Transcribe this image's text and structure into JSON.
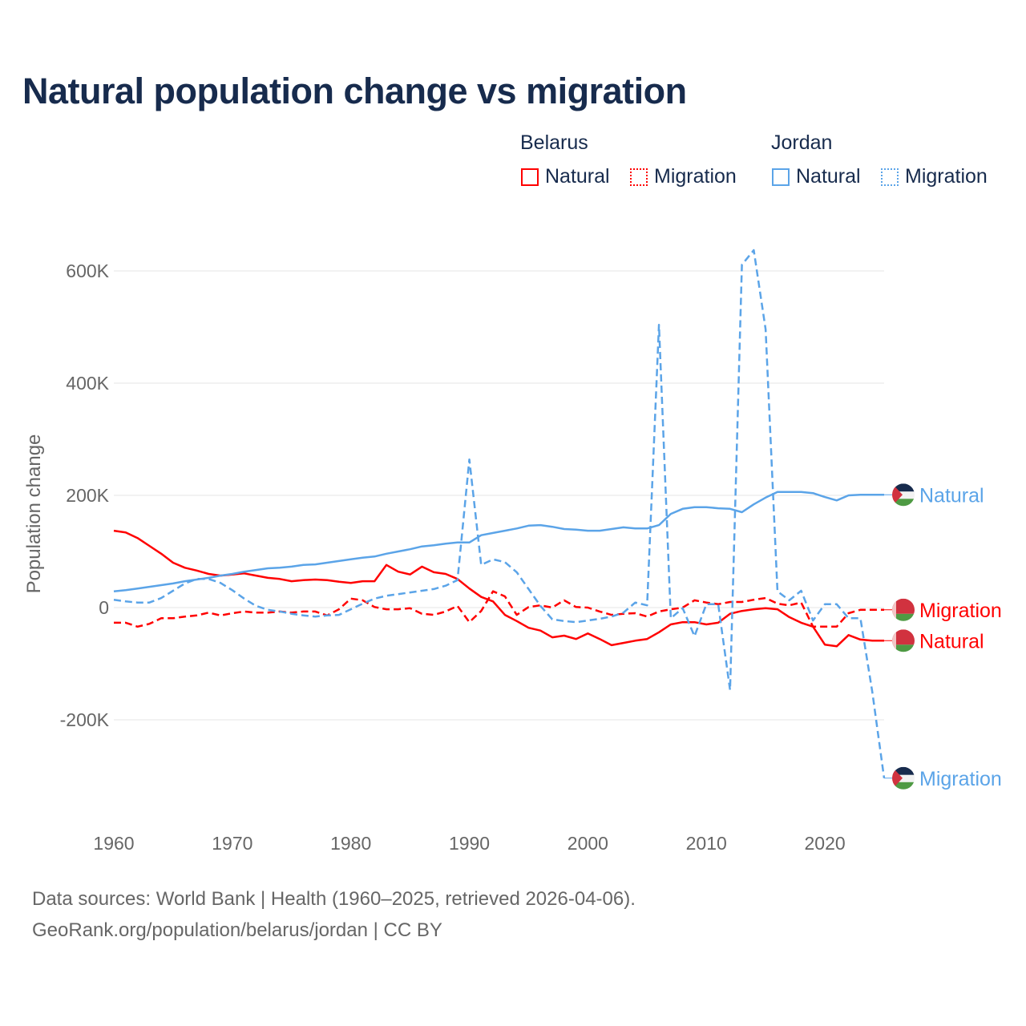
{
  "chart_data": {
    "type": "line",
    "title": "Natural population change vs migration",
    "xlabel": "",
    "ylabel": "Population change",
    "xlim": [
      1960,
      2025
    ],
    "ylim": [
      -330,
      650
    ],
    "y_ticks": [
      {
        "v": 600,
        "label": "600K"
      },
      {
        "v": 400,
        "label": "400K"
      },
      {
        "v": 200,
        "label": "200K"
      },
      {
        "v": 0,
        "label": "0"
      },
      {
        "v": -200,
        "label": "-200K"
      }
    ],
    "x_ticks": [
      {
        "v": 1960,
        "label": "1960"
      },
      {
        "v": 1970,
        "label": "1970"
      },
      {
        "v": 1980,
        "label": "1980"
      },
      {
        "v": 1990,
        "label": "1990"
      },
      {
        "v": 2000,
        "label": "2000"
      },
      {
        "v": 2010,
        "label": "2010"
      },
      {
        "v": 2020,
        "label": "2020"
      }
    ],
    "grid": true,
    "x_start": 1960,
    "unit": "thousands",
    "series": [
      {
        "name": "Belarus Natural",
        "country": "Belarus",
        "kind": "Natural",
        "color": "#ff0000",
        "dash": false,
        "end_label": "Natural",
        "values": [
          137,
          134,
          124,
          110,
          96,
          80,
          71,
          66,
          60,
          57,
          59,
          61,
          57,
          53,
          51,
          47,
          49,
          50,
          49,
          46,
          44,
          47,
          47,
          76,
          64,
          59,
          73,
          63,
          60,
          51,
          34,
          19,
          11,
          -13,
          -24,
          -36,
          -41,
          -53,
          -50,
          -56,
          -46,
          -56,
          -67,
          -63,
          -59,
          -56,
          -44,
          -30,
          -26,
          -26,
          -30,
          -27,
          -11,
          -6,
          -3,
          -1,
          -3,
          -17,
          -27,
          -34,
          -66,
          -69,
          -49,
          -57,
          -59,
          -59
        ]
      },
      {
        "name": "Belarus Migration",
        "country": "Belarus",
        "kind": "Migration",
        "color": "#ff0000",
        "dash": true,
        "end_label": "Migration",
        "values": [
          -27,
          -27,
          -34,
          -29,
          -19,
          -19,
          -16,
          -14,
          -9,
          -14,
          -10,
          -7,
          -9,
          -9,
          -7,
          -9,
          -7,
          -7,
          -14,
          -3,
          16,
          13,
          1,
          -3,
          -3,
          -1,
          -11,
          -13,
          -7,
          3,
          -26,
          -6,
          29,
          20,
          -13,
          1,
          4,
          0,
          13,
          1,
          0,
          -7,
          -13,
          -11,
          -10,
          -16,
          -7,
          -3,
          0,
          13,
          9,
          6,
          10,
          10,
          14,
          17,
          7,
          4,
          9,
          -34,
          -34,
          -34,
          -10,
          -4,
          -4,
          -4
        ]
      },
      {
        "name": "Jordan Natural",
        "country": "Jordan",
        "kind": "Natural",
        "color": "#5ba4e8",
        "dash": false,
        "end_label": "Natural",
        "values": [
          29,
          31,
          34,
          37,
          40,
          43,
          47,
          50,
          53,
          57,
          60,
          64,
          67,
          70,
          71,
          73,
          76,
          77,
          80,
          83,
          86,
          89,
          91,
          96,
          100,
          104,
          109,
          111,
          114,
          116,
          116,
          129,
          133,
          137,
          141,
          146,
          147,
          144,
          140,
          139,
          137,
          137,
          140,
          143,
          141,
          141,
          147,
          167,
          176,
          179,
          179,
          177,
          176,
          170,
          184,
          196,
          206,
          206,
          206,
          204,
          197,
          191,
          200,
          201,
          201,
          201
        ]
      },
      {
        "name": "Jordan Migration",
        "country": "Jordan",
        "kind": "Migration",
        "color": "#5ba4e8",
        "dash": true,
        "end_label": "Migration",
        "values": [
          14,
          11,
          9,
          9,
          17,
          30,
          43,
          51,
          51,
          44,
          31,
          16,
          3,
          -4,
          -7,
          -11,
          -14,
          -16,
          -14,
          -13,
          -3,
          7,
          16,
          21,
          24,
          27,
          30,
          33,
          39,
          49,
          264,
          76,
          86,
          81,
          63,
          33,
          3,
          -21,
          -24,
          -26,
          -23,
          -20,
          -16,
          -9,
          9,
          4,
          504,
          -19,
          -1,
          -51,
          6,
          6,
          -147,
          611,
          637,
          496,
          29,
          13,
          30,
          -23,
          6,
          6,
          -19,
          -19,
          -150,
          -304
        ]
      }
    ]
  },
  "legend": {
    "groups": [
      {
        "name": "Belarus",
        "items": [
          "Natural",
          "Migration"
        ]
      },
      {
        "name": "Jordan",
        "items": [
          "Natural",
          "Migration"
        ]
      }
    ]
  },
  "footer": {
    "line1": "Data sources: World Bank | Health (1960–2025, retrieved 2026-04-06).",
    "line2": "GeoRank.org/population/belarus/jordan | CC BY"
  }
}
